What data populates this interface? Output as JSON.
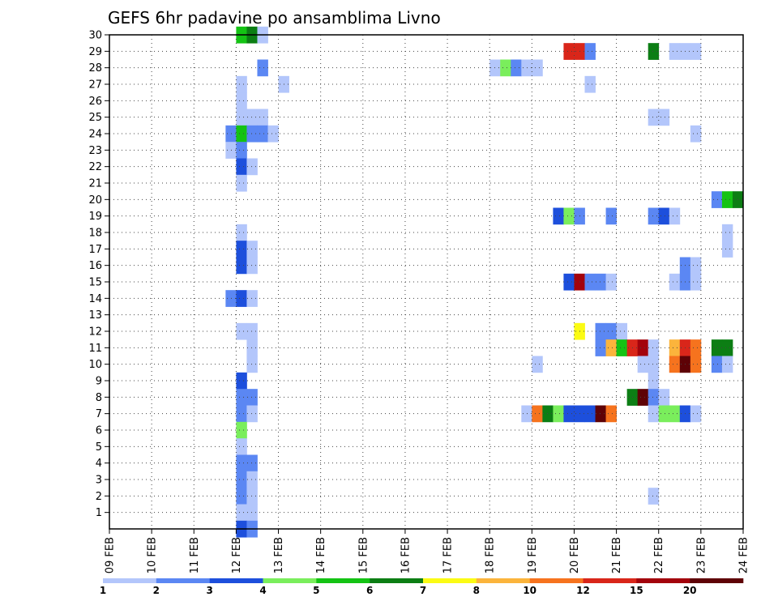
{
  "chart_data": {
    "type": "heatmap",
    "title": "GEFS 6hr padavine po ansamblima Livno",
    "xlabel": "",
    "ylabel": "",
    "x_tick_labels": [
      "09 FEB",
      "10 FEB",
      "11 FEB",
      "12 FEB",
      "13 FEB",
      "14 FEB",
      "15 FEB",
      "16 FEB",
      "17 FEB",
      "18 FEB",
      "19 FEB",
      "20 FEB",
      "21 FEB",
      "22 FEB",
      "23 FEB",
      "24 FEB"
    ],
    "y_tick_labels": [
      "1",
      "2",
      "3",
      "4",
      "5",
      "6",
      "7",
      "8",
      "9",
      "10",
      "11",
      "12",
      "13",
      "14",
      "15",
      "16",
      "17",
      "18",
      "19",
      "20",
      "21",
      "22",
      "23",
      "24",
      "25",
      "26",
      "27",
      "28",
      "29",
      "30"
    ],
    "xlim_days": [
      0,
      15
    ],
    "ylim_members": [
      0,
      30
    ],
    "time_step_hours": 6,
    "grid": "dotted",
    "colorbar": {
      "labels": [
        "1",
        "2",
        "3",
        "4",
        "5",
        "6",
        "7",
        "8",
        "10",
        "12",
        "15",
        "20"
      ],
      "colors": [
        "#b3c6fb",
        "#5b87f3",
        "#1d4fdc",
        "#7aee5c",
        "#14c314",
        "#0c7e14",
        "#fbfb14",
        "#fbb43c",
        "#f6731e",
        "#d9261a",
        "#a3030c",
        "#5e0206"
      ]
    },
    "cells": [
      [
        3.0,
        30,
        5
      ],
      [
        3.25,
        30,
        6
      ],
      [
        3.5,
        30,
        1
      ],
      [
        10.75,
        29,
        10
      ],
      [
        11.0,
        29,
        10
      ],
      [
        11.25,
        29,
        2
      ],
      [
        12.75,
        29,
        6
      ],
      [
        13.25,
        29,
        1
      ],
      [
        13.5,
        29,
        1
      ],
      [
        13.75,
        29,
        1
      ],
      [
        3.5,
        28,
        2
      ],
      [
        9.0,
        28,
        1
      ],
      [
        9.25,
        28,
        4
      ],
      [
        9.5,
        28,
        2
      ],
      [
        9.75,
        28,
        1
      ],
      [
        10.0,
        28,
        1
      ],
      [
        3.0,
        27,
        1
      ],
      [
        4.0,
        27,
        1
      ],
      [
        11.25,
        27,
        1
      ],
      [
        3.0,
        26,
        1
      ],
      [
        3.0,
        25,
        1
      ],
      [
        3.25,
        25,
        1
      ],
      [
        3.5,
        25,
        1
      ],
      [
        12.75,
        25,
        1
      ],
      [
        13.0,
        25,
        1
      ],
      [
        2.75,
        24,
        2
      ],
      [
        3.0,
        24,
        5
      ],
      [
        3.25,
        24,
        2
      ],
      [
        3.5,
        24,
        2
      ],
      [
        3.75,
        24,
        1
      ],
      [
        13.75,
        24,
        1
      ],
      [
        2.75,
        23,
        1
      ],
      [
        3.0,
        23,
        2
      ],
      [
        3.0,
        22,
        3
      ],
      [
        3.25,
        22,
        1
      ],
      [
        3.0,
        21,
        1
      ],
      [
        14.25,
        20,
        2
      ],
      [
        14.5,
        20,
        5
      ],
      [
        14.75,
        20,
        6
      ],
      [
        10.5,
        19,
        3
      ],
      [
        10.75,
        19,
        4
      ],
      [
        11.0,
        19,
        2
      ],
      [
        11.75,
        19,
        2
      ],
      [
        12.75,
        19,
        2
      ],
      [
        13.0,
        19,
        3
      ],
      [
        13.25,
        19,
        1
      ],
      [
        3.0,
        18,
        1
      ],
      [
        14.5,
        18,
        1
      ],
      [
        3.0,
        17,
        3
      ],
      [
        3.25,
        17,
        1
      ],
      [
        14.5,
        17,
        1
      ],
      [
        3.0,
        16,
        3
      ],
      [
        3.25,
        16,
        1
      ],
      [
        13.5,
        16,
        2
      ],
      [
        13.75,
        16,
        1
      ],
      [
        10.75,
        15,
        3
      ],
      [
        11.0,
        15,
        11
      ],
      [
        11.25,
        15,
        2
      ],
      [
        11.5,
        15,
        2
      ],
      [
        11.75,
        15,
        1
      ],
      [
        13.25,
        15,
        1
      ],
      [
        13.5,
        15,
        2
      ],
      [
        13.75,
        15,
        1
      ],
      [
        2.75,
        14,
        2
      ],
      [
        3.0,
        14,
        3
      ],
      [
        3.25,
        14,
        1
      ],
      [
        3.0,
        12,
        1
      ],
      [
        3.25,
        12,
        1
      ],
      [
        11.0,
        12,
        7
      ],
      [
        11.5,
        12,
        2
      ],
      [
        11.75,
        12,
        2
      ],
      [
        12.0,
        12,
        1
      ],
      [
        3.25,
        11,
        1
      ],
      [
        11.5,
        11,
        2
      ],
      [
        11.75,
        11,
        8
      ],
      [
        12.0,
        11,
        5
      ],
      [
        12.25,
        11,
        10
      ],
      [
        12.5,
        11,
        11
      ],
      [
        12.75,
        11,
        1
      ],
      [
        13.25,
        11,
        8
      ],
      [
        13.5,
        11,
        10
      ],
      [
        13.75,
        11,
        9
      ],
      [
        14.25,
        11,
        6
      ],
      [
        14.5,
        11,
        6
      ],
      [
        3.25,
        10,
        1
      ],
      [
        10.0,
        10,
        1
      ],
      [
        12.5,
        10,
        1
      ],
      [
        12.75,
        10,
        1
      ],
      [
        13.25,
        10,
        9
      ],
      [
        13.5,
        10,
        12
      ],
      [
        13.75,
        10,
        9
      ],
      [
        14.25,
        10,
        2
      ],
      [
        14.5,
        10,
        1
      ],
      [
        3.0,
        9,
        3
      ],
      [
        12.75,
        9,
        1
      ],
      [
        3.0,
        8,
        2
      ],
      [
        3.25,
        8,
        2
      ],
      [
        12.25,
        8,
        6
      ],
      [
        12.5,
        8,
        12
      ],
      [
        12.75,
        8,
        2
      ],
      [
        13.0,
        8,
        1
      ],
      [
        3.0,
        7,
        2
      ],
      [
        3.25,
        7,
        1
      ],
      [
        9.75,
        7,
        1
      ],
      [
        10.0,
        7,
        9
      ],
      [
        10.25,
        7,
        6
      ],
      [
        10.5,
        7,
        4
      ],
      [
        10.75,
        7,
        3
      ],
      [
        11.0,
        7,
        3
      ],
      [
        11.25,
        7,
        3
      ],
      [
        11.5,
        7,
        12
      ],
      [
        11.75,
        7,
        9
      ],
      [
        12.75,
        7,
        1
      ],
      [
        13.0,
        7,
        4
      ],
      [
        13.25,
        7,
        4
      ],
      [
        13.5,
        7,
        3
      ],
      [
        13.75,
        7,
        1
      ],
      [
        3.0,
        6,
        4
      ],
      [
        3.0,
        5,
        1
      ],
      [
        3.0,
        4,
        2
      ],
      [
        3.25,
        4,
        2
      ],
      [
        3.0,
        3,
        2
      ],
      [
        3.25,
        3,
        1
      ],
      [
        3.0,
        2,
        2
      ],
      [
        3.25,
        2,
        1
      ],
      [
        12.75,
        2,
        1
      ],
      [
        3.0,
        1,
        1
      ],
      [
        3.25,
        1,
        1
      ],
      [
        3.0,
        0,
        3
      ],
      [
        3.25,
        0,
        2
      ]
    ]
  }
}
